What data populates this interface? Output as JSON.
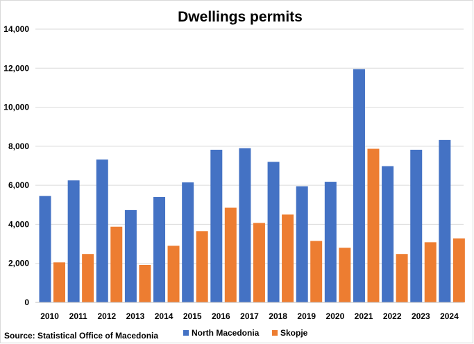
{
  "chart_data": {
    "type": "bar",
    "title": "Dwellings permits",
    "xlabel": "",
    "ylabel": "",
    "ylim": [
      0,
      14000
    ],
    "yticks": [
      0,
      2000,
      4000,
      6000,
      8000,
      10000,
      12000,
      14000
    ],
    "ytick_labels": [
      "0",
      "2,000",
      "4,000",
      "6,000",
      "8,000",
      "10,000",
      "12,000",
      "14,000"
    ],
    "categories": [
      "2010",
      "2011",
      "2012",
      "2013",
      "2014",
      "2015",
      "2016",
      "2017",
      "2018",
      "2019",
      "2020",
      "2021",
      "2022",
      "2023",
      "2024"
    ],
    "series": [
      {
        "name": "North Macedonia",
        "color": "#4472C4",
        "values": [
          5450,
          6250,
          7320,
          4730,
          5400,
          6150,
          7820,
          7900,
          7200,
          5950,
          6180,
          11950,
          6980,
          7820,
          8320
        ]
      },
      {
        "name": "Skopje",
        "color": "#ED7D31",
        "values": [
          2050,
          2480,
          3880,
          1920,
          2900,
          3650,
          4850,
          4070,
          4500,
          3150,
          2800,
          7870,
          2480,
          3080,
          3280
        ]
      }
    ],
    "grid": true,
    "legend_position": "bottom",
    "source": "Source: Statistical Office of Macedonia"
  }
}
